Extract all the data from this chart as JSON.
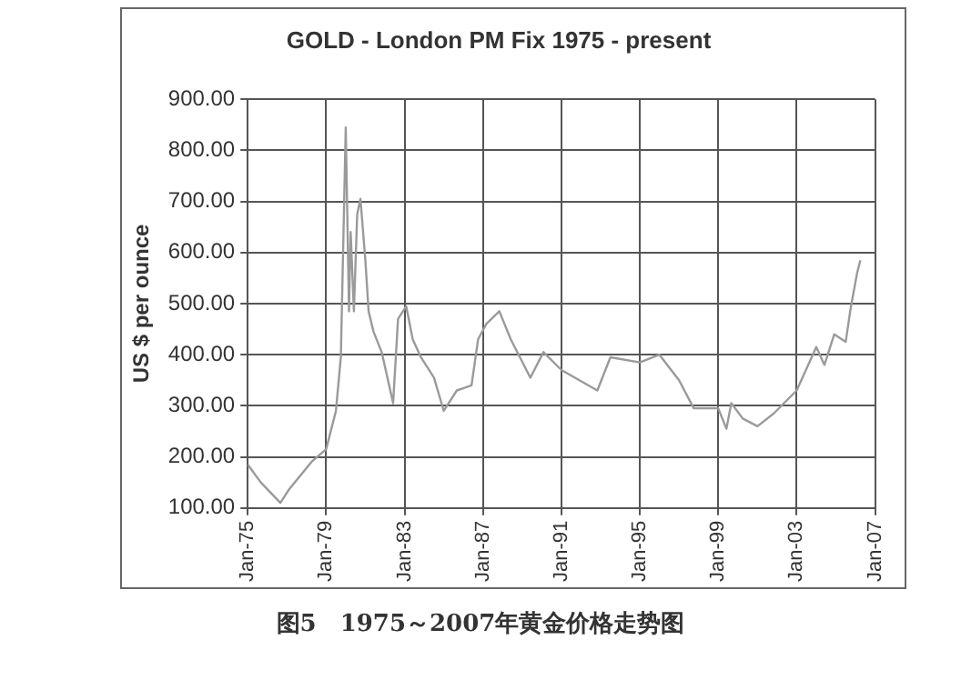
{
  "chart_data": {
    "type": "line",
    "title": "GOLD - London PM Fix 1975 - present",
    "ylabel": "US $ per ounce",
    "annotations": [
      "图5　1975～2007年黄金价格走势图"
    ],
    "x": [
      "1975-01",
      "1975-09",
      "1976-09",
      "1977-02",
      "1978-04",
      "1979-01",
      "1979-07",
      "1979-10",
      "1980-01",
      "1980-03",
      "1980-04",
      "1980-06",
      "1980-08",
      "1980-10",
      "1981-01",
      "1981-03",
      "1981-06",
      "1981-11",
      "1982-06",
      "1982-09",
      "1983-02",
      "1983-06",
      "1983-11",
      "1984-07",
      "1985-01",
      "1985-09",
      "1986-06",
      "1986-10",
      "1987-03",
      "1987-11",
      "1988-06",
      "1989-06",
      "1990-02",
      "1991-01",
      "1992-11",
      "1993-07",
      "1995-01",
      "1996-01",
      "1997-01",
      "1997-10",
      "1999-01",
      "1999-06",
      "1999-09",
      "2000-04",
      "2001-01",
      "2001-11",
      "2003-01",
      "2004-01",
      "2004-06",
      "2004-12",
      "2005-07",
      "2005-10",
      "2006-02",
      "2006-04"
    ],
    "series": [
      {
        "color": "#9a9a9a",
        "values": [
          185,
          150,
          110,
          135,
          190,
          215,
          290,
          395,
          845,
          485,
          640,
          485,
          675,
          705,
          585,
          485,
          445,
          405,
          305,
          470,
          495,
          430,
          395,
          355,
          290,
          330,
          340,
          430,
          460,
          485,
          430,
          355,
          405,
          370,
          330,
          395,
          385,
          400,
          350,
          295,
          295,
          255,
          305,
          275,
          260,
          285,
          330,
          415,
          380,
          440,
          425,
          490,
          560,
          585
        ]
      }
    ],
    "xlim": [
      "1975-01",
      "2007-01"
    ],
    "xticks": [
      {
        "value": "1975-01",
        "label": "Jan-75"
      },
      {
        "value": "1979-01",
        "label": "Jan-79"
      },
      {
        "value": "1983-01",
        "label": "Jan-83"
      },
      {
        "value": "1987-01",
        "label": "Jan-87"
      },
      {
        "value": "1991-01",
        "label": "Jan-91"
      },
      {
        "value": "1995-01",
        "label": "Jan-95"
      },
      {
        "value": "1999-01",
        "label": "Jan-99"
      },
      {
        "value": "2003-01",
        "label": "Jan-03"
      },
      {
        "value": "2007-01",
        "label": "Jan-07"
      }
    ],
    "ylim": [
      100,
      900
    ],
    "yticks": [
      {
        "value": 100,
        "label": "100.00"
      },
      {
        "value": 200,
        "label": "200.00"
      },
      {
        "value": 300,
        "label": "300.00"
      },
      {
        "value": 400,
        "label": "400.00"
      },
      {
        "value": 500,
        "label": "500.00"
      },
      {
        "value": 600,
        "label": "600.00"
      },
      {
        "value": 700,
        "label": "700.00"
      },
      {
        "value": 800,
        "label": "800.00"
      },
      {
        "value": 900,
        "label": "900.00"
      }
    ],
    "grid": true,
    "legend": false,
    "marker": "none",
    "line_style": "solid"
  }
}
